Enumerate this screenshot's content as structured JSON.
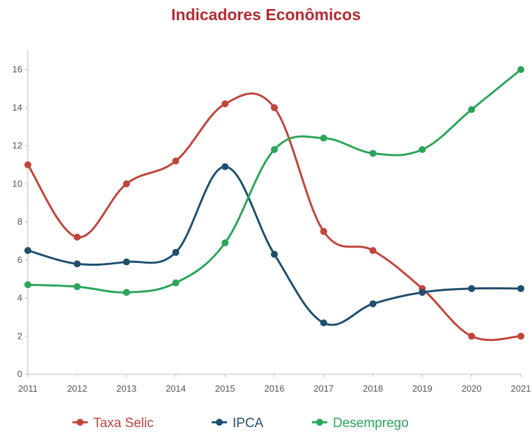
{
  "chart_data": {
    "type": "line",
    "title": "Indicadores Econômicos",
    "xlabel": "",
    "ylabel": "",
    "x": [
      2011,
      2012,
      2013,
      2014,
      2015,
      2016,
      2017,
      2018,
      2019,
      2020,
      2021
    ],
    "x_tick_labels": [
      "2011",
      "2012",
      "2013",
      "2014",
      "2015",
      "2016",
      "2017",
      "2018",
      "2019",
      "2020",
      "2021"
    ],
    "ylim": [
      0,
      16
    ],
    "y_ticks": [
      0,
      2,
      4,
      6,
      8,
      10,
      12,
      14,
      16
    ],
    "y_tick_labels": [
      "0",
      "2",
      "4",
      "6",
      "8",
      "10",
      "12",
      "14",
      "16"
    ],
    "grid": false,
    "legend_position": "bottom",
    "series": [
      {
        "name": "Taxa Selic",
        "color": "#c0453b",
        "values": [
          11.0,
          7.2,
          10.0,
          11.2,
          14.2,
          14.0,
          7.5,
          6.5,
          4.5,
          2.0,
          2.0
        ]
      },
      {
        "name": "IPCA",
        "color": "#1f4e6e",
        "values": [
          6.5,
          5.8,
          5.9,
          6.4,
          10.9,
          6.3,
          2.7,
          3.7,
          4.3,
          4.5,
          4.5
        ]
      },
      {
        "name": "Desemprego",
        "color": "#2ba55a",
        "values": [
          4.7,
          4.6,
          4.3,
          4.8,
          6.9,
          11.8,
          12.4,
          11.6,
          11.8,
          13.9,
          16.0
        ]
      }
    ]
  }
}
